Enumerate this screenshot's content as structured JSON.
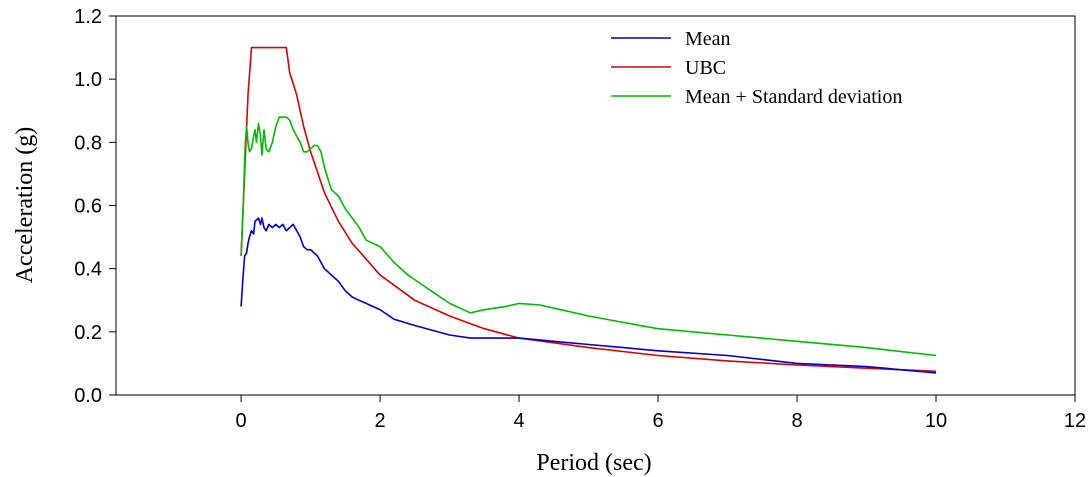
{
  "chart_data": {
    "type": "line",
    "title": "",
    "xlabel": "Period (sec)",
    "ylabel": "Acceleration (g)",
    "xlim": [
      -1.8,
      12
    ],
    "ylim": [
      0,
      1.2
    ],
    "xticks": [
      0,
      2,
      4,
      6,
      8,
      10,
      12
    ],
    "yticks": [
      0.0,
      0.2,
      0.4,
      0.6,
      0.8,
      1.0,
      1.2
    ],
    "xtick_labels": [
      "0",
      "2",
      "4",
      "6",
      "8",
      "10",
      "12"
    ],
    "ytick_labels": [
      "0.0",
      "0.2",
      "0.4",
      "0.6",
      "0.8",
      "1.0",
      "1.2"
    ],
    "grid": false,
    "legend_position": "top-right",
    "series": [
      {
        "name": "Mean",
        "color": "#0000CC",
        "x": [
          0,
          0.02,
          0.05,
          0.08,
          0.1,
          0.12,
          0.15,
          0.18,
          0.2,
          0.25,
          0.28,
          0.3,
          0.33,
          0.36,
          0.4,
          0.45,
          0.5,
          0.55,
          0.6,
          0.65,
          0.7,
          0.75,
          0.8,
          0.85,
          0.9,
          0.95,
          1.0,
          1.05,
          1.1,
          1.15,
          1.2,
          1.3,
          1.4,
          1.5,
          1.6,
          1.7,
          1.8,
          1.9,
          2.0,
          2.2,
          2.5,
          3.0,
          3.3,
          3.5,
          3.8,
          4.0,
          4.5,
          5.0,
          5.5,
          6.0,
          7.0,
          8.0,
          9.0,
          10.0
        ],
        "y": [
          0.28,
          0.35,
          0.44,
          0.45,
          0.48,
          0.5,
          0.52,
          0.51,
          0.55,
          0.56,
          0.54,
          0.56,
          0.53,
          0.52,
          0.54,
          0.53,
          0.54,
          0.53,
          0.54,
          0.52,
          0.53,
          0.54,
          0.52,
          0.5,
          0.47,
          0.46,
          0.46,
          0.45,
          0.44,
          0.42,
          0.4,
          0.38,
          0.36,
          0.33,
          0.31,
          0.3,
          0.29,
          0.28,
          0.27,
          0.24,
          0.22,
          0.19,
          0.18,
          0.18,
          0.18,
          0.18,
          0.17,
          0.16,
          0.15,
          0.14,
          0.125,
          0.1,
          0.09,
          0.07
        ]
      },
      {
        "name": "UBC",
        "color": "#DD0000",
        "x": [
          0,
          0.1,
          0.15,
          0.65,
          0.7,
          0.8,
          0.9,
          1.0,
          1.2,
          1.4,
          1.6,
          1.8,
          2.0,
          2.5,
          3.0,
          3.5,
          4.0,
          5.0,
          6.0,
          7.0,
          8.0,
          9.0,
          10.0
        ],
        "y": [
          0.44,
          0.95,
          1.1,
          1.1,
          1.02,
          0.95,
          0.85,
          0.77,
          0.64,
          0.55,
          0.48,
          0.43,
          0.38,
          0.3,
          0.25,
          0.21,
          0.18,
          0.15,
          0.125,
          0.108,
          0.095,
          0.085,
          0.075
        ]
      },
      {
        "name": "Mean + Standard deviation",
        "color": "#00BB00",
        "x": [
          0,
          0.03,
          0.06,
          0.08,
          0.1,
          0.12,
          0.15,
          0.18,
          0.2,
          0.22,
          0.25,
          0.28,
          0.3,
          0.33,
          0.36,
          0.4,
          0.45,
          0.5,
          0.55,
          0.6,
          0.65,
          0.7,
          0.75,
          0.8,
          0.85,
          0.9,
          0.95,
          1.0,
          1.05,
          1.1,
          1.15,
          1.2,
          1.3,
          1.4,
          1.5,
          1.6,
          1.7,
          1.8,
          1.9,
          2.0,
          2.2,
          2.4,
          2.6,
          2.8,
          3.0,
          3.2,
          3.3,
          3.5,
          3.8,
          4.0,
          4.3,
          4.6,
          5.0,
          5.5,
          6.0,
          7.0,
          8.0,
          9.0,
          10.0
        ],
        "y": [
          0.44,
          0.6,
          0.8,
          0.85,
          0.8,
          0.77,
          0.78,
          0.82,
          0.84,
          0.8,
          0.86,
          0.82,
          0.76,
          0.84,
          0.78,
          0.77,
          0.8,
          0.85,
          0.88,
          0.88,
          0.88,
          0.87,
          0.84,
          0.82,
          0.8,
          0.77,
          0.77,
          0.78,
          0.79,
          0.79,
          0.77,
          0.72,
          0.65,
          0.63,
          0.59,
          0.56,
          0.53,
          0.49,
          0.48,
          0.47,
          0.42,
          0.38,
          0.35,
          0.32,
          0.29,
          0.27,
          0.26,
          0.27,
          0.28,
          0.29,
          0.285,
          0.27,
          0.25,
          0.23,
          0.21,
          0.19,
          0.17,
          0.15,
          0.125
        ]
      }
    ]
  }
}
